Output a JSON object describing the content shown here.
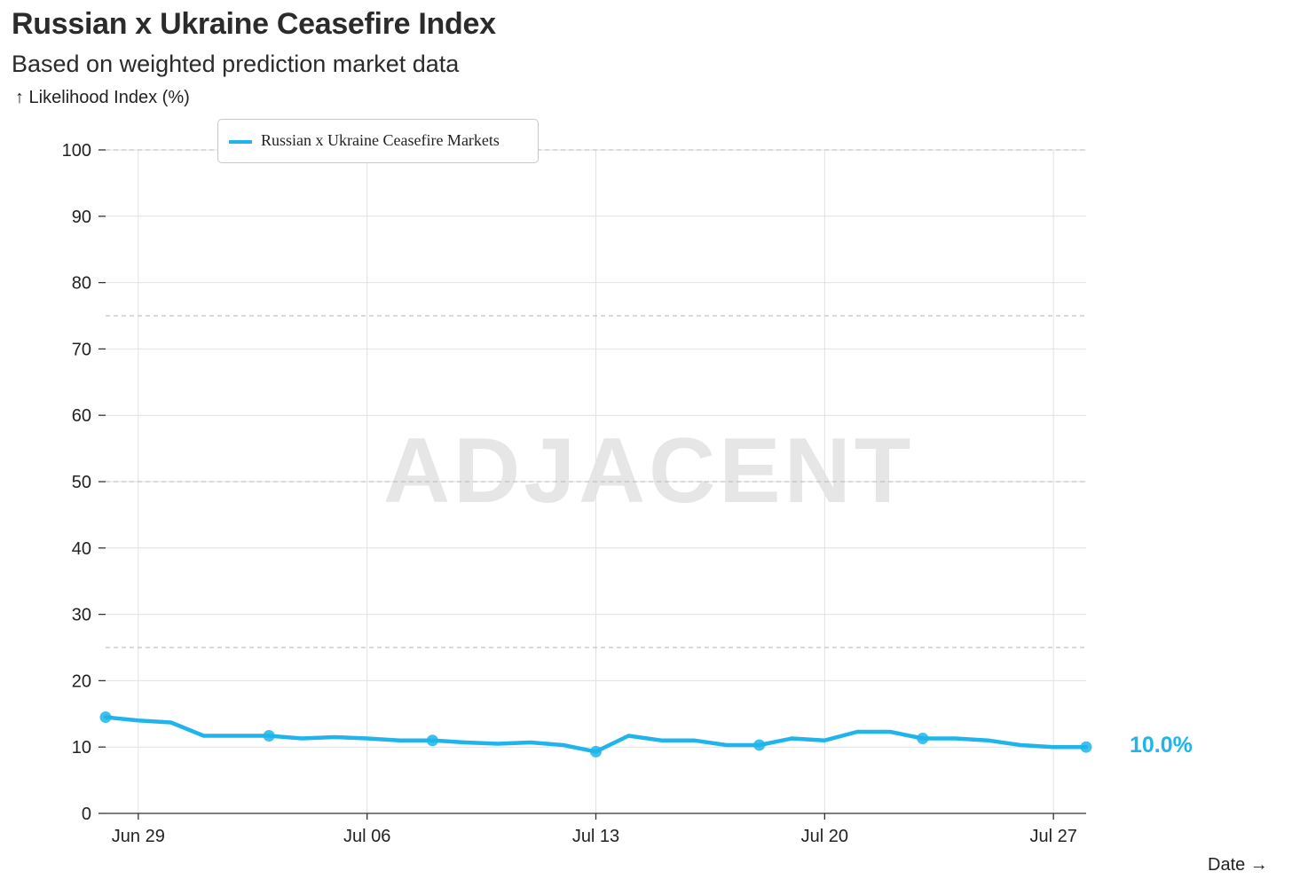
{
  "header": {
    "title": "Russian x Ukraine Ceasefire Index",
    "subtitle": "Based on weighted prediction market data"
  },
  "watermark": "ADJACENT",
  "end_label": "10.0%",
  "chart_data": {
    "type": "line",
    "ylabel": "↑ Likelihood Index (%)",
    "xlabel": "Date →",
    "ylim": [
      0,
      100
    ],
    "yticks": [
      0,
      10,
      20,
      30,
      40,
      50,
      60,
      70,
      80,
      90,
      100
    ],
    "dashed_gridlines": [
      25,
      50,
      75,
      100
    ],
    "x_range": [
      "2025-06-28",
      "2025-07-28"
    ],
    "xticks": [
      {
        "date": "2025-06-29",
        "label": "Jun 29"
      },
      {
        "date": "2025-07-06",
        "label": "Jul 06"
      },
      {
        "date": "2025-07-13",
        "label": "Jul 13"
      },
      {
        "date": "2025-07-20",
        "label": "Jul 20"
      },
      {
        "date": "2025-07-27",
        "label": "Jul 27"
      }
    ],
    "grid": true,
    "legend_position": "top-left",
    "series": [
      {
        "name": "Russian x Ukraine Ceasefire Markets",
        "color": "#1fb5ec",
        "x": [
          "2025-06-28",
          "2025-06-29",
          "2025-06-30",
          "2025-07-01",
          "2025-07-02",
          "2025-07-03",
          "2025-07-04",
          "2025-07-05",
          "2025-07-06",
          "2025-07-07",
          "2025-07-08",
          "2025-07-09",
          "2025-07-10",
          "2025-07-11",
          "2025-07-12",
          "2025-07-13",
          "2025-07-14",
          "2025-07-15",
          "2025-07-16",
          "2025-07-17",
          "2025-07-18",
          "2025-07-19",
          "2025-07-20",
          "2025-07-21",
          "2025-07-22",
          "2025-07-23",
          "2025-07-24",
          "2025-07-25",
          "2025-07-26",
          "2025-07-27",
          "2025-07-28"
        ],
        "values": [
          14.5,
          14.0,
          13.7,
          11.7,
          11.7,
          11.7,
          11.3,
          11.5,
          11.3,
          11.0,
          11.0,
          10.7,
          10.5,
          10.7,
          10.3,
          9.3,
          11.7,
          11.0,
          11.0,
          10.3,
          10.3,
          11.3,
          11.0,
          12.3,
          12.3,
          11.3,
          11.3,
          11.0,
          10.3,
          10.0,
          10.0
        ],
        "markers": [
          "2025-06-28",
          "2025-07-03",
          "2025-07-08",
          "2025-07-13",
          "2025-07-18",
          "2025-07-23",
          "2025-07-28"
        ]
      }
    ]
  }
}
